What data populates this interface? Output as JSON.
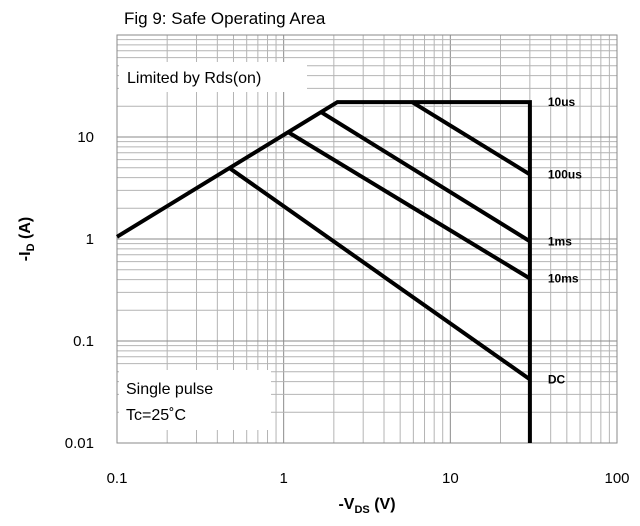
{
  "chart_data": {
    "type": "line",
    "title": "Fig 9: Safe Operating Area",
    "xlabel_main": "-V",
    "xlabel_sub": "DS",
    "xlabel_unit": " (V)",
    "ylabel_main": "-I",
    "ylabel_sub": "D",
    "ylabel_unit": " (A)",
    "xscale": "log",
    "yscale": "log",
    "xlim": [
      0.1,
      100
    ],
    "ylim": [
      0.01,
      100
    ],
    "x_ticks": [
      "0.1",
      "1",
      "10",
      "100"
    ],
    "y_ticks": [
      "0.01",
      "0.1",
      "1",
      "10"
    ],
    "grid": true,
    "annotations": {
      "limited": "Limited by Rds(on)",
      "pulse": "Single pulse",
      "tc": "Tc=25˚C"
    },
    "series": [
      {
        "name": "10us",
        "x": [
          0.1,
          2.1,
          30,
          30
        ],
        "y": [
          1.05,
          22,
          22,
          0.01
        ]
      },
      {
        "name": "100us",
        "x": [
          5.9,
          30
        ],
        "y": [
          22,
          4.3
        ]
      },
      {
        "name": "1ms",
        "x": [
          1.68,
          30
        ],
        "y": [
          17.5,
          0.95
        ]
      },
      {
        "name": "10ms",
        "x": [
          1.06,
          30
        ],
        "y": [
          11.2,
          0.41
        ]
      },
      {
        "name": "DC",
        "x": [
          0.47,
          30
        ],
        "y": [
          5.0,
          0.042
        ]
      }
    ],
    "label_y": {
      "10us": 22,
      "100us": 4.3,
      "1ms": 0.95,
      "10ms": 0.41,
      "DC": 0.042
    }
  }
}
